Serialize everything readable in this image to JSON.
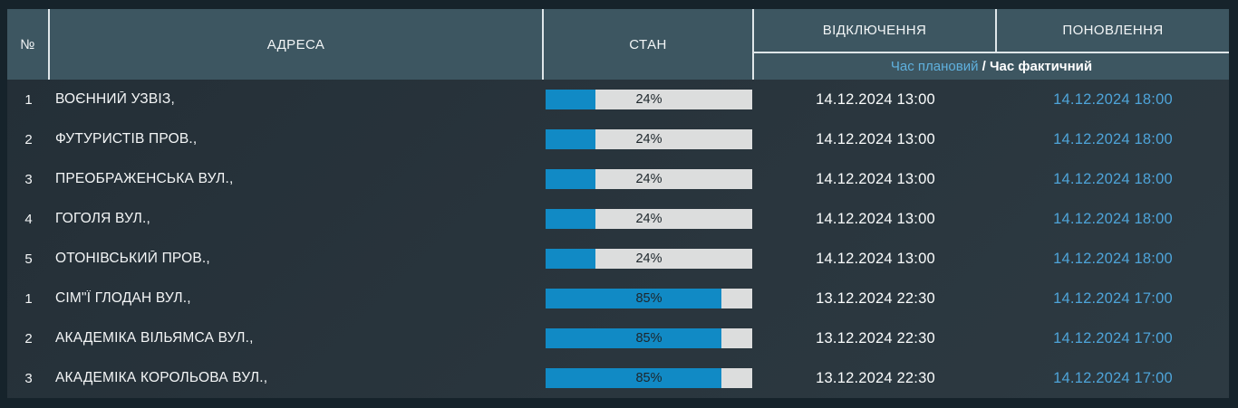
{
  "table": {
    "columns": {
      "number": "№",
      "address": "АДРЕСА",
      "state": "СТАН",
      "outage": "ВІДКЛЮЧЕННЯ",
      "restore": "ПОНОВЛЕННЯ"
    },
    "subheader": {
      "planned": "Час плановий",
      "slash": " / ",
      "actual": "Час фактичний"
    },
    "rows": [
      {
        "num": "1",
        "address": "ВОЄННИЙ УЗВІЗ,",
        "percent": 24,
        "percent_label": "24%",
        "outage": "14.12.2024 13:00",
        "restore": "14.12.2024 18:00"
      },
      {
        "num": "2",
        "address": "ФУТУРИСТІВ ПРОВ.,",
        "percent": 24,
        "percent_label": "24%",
        "outage": "14.12.2024 13:00",
        "restore": "14.12.2024 18:00"
      },
      {
        "num": "3",
        "address": "ПРЕОБРАЖЕНСЬКА ВУЛ.,",
        "percent": 24,
        "percent_label": "24%",
        "outage": "14.12.2024 13:00",
        "restore": "14.12.2024 18:00"
      },
      {
        "num": "4",
        "address": "ГОГОЛЯ ВУЛ.,",
        "percent": 24,
        "percent_label": "24%",
        "outage": "14.12.2024 13:00",
        "restore": "14.12.2024 18:00"
      },
      {
        "num": "5",
        "address": "ОТОНІВСЬКИЙ ПРОВ.,",
        "percent": 24,
        "percent_label": "24%",
        "outage": "14.12.2024 13:00",
        "restore": "14.12.2024 18:00"
      },
      {
        "num": "1",
        "address": "СІМ\"Ї ГЛОДАН ВУЛ.,",
        "percent": 85,
        "percent_label": "85%",
        "outage": "13.12.2024 22:30",
        "restore": "14.12.2024 17:00"
      },
      {
        "num": "2",
        "address": "АКАДЕМІКА ВІЛЬЯМСА ВУЛ.,",
        "percent": 85,
        "percent_label": "85%",
        "outage": "13.12.2024 22:30",
        "restore": "14.12.2024 17:00"
      },
      {
        "num": "3",
        "address": "АКАДЕМІКА КОРОЛЬОВА ВУЛ.,",
        "percent": 85,
        "percent_label": "85%",
        "outage": "13.12.2024 22:30",
        "restore": "14.12.2024 17:00"
      }
    ]
  },
  "colors": {
    "frame_background": "#16232b",
    "header_background": "#3d5661",
    "body_background": "#28343c",
    "separator": "#dfe6e9",
    "accent_blue": "#118ac5",
    "bar_track": "#dcdddd",
    "planned_blue": "#5fb0dd",
    "restore_blue": "#4ea4d9"
  }
}
